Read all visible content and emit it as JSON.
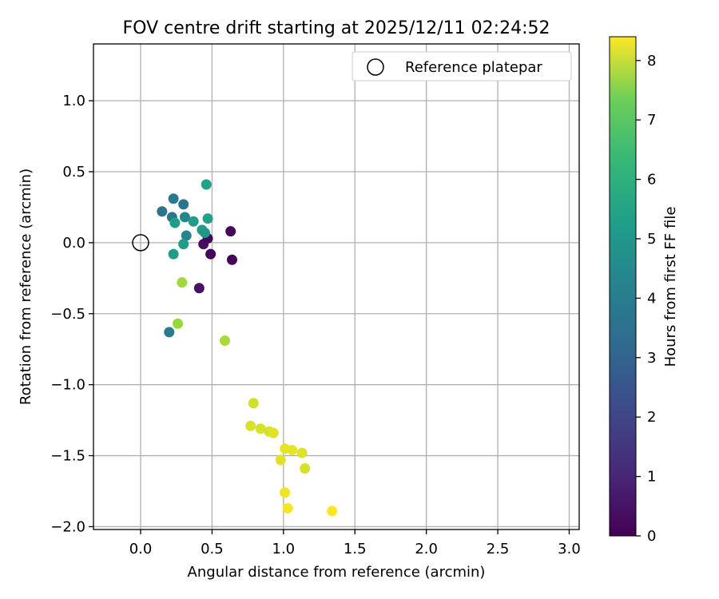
{
  "chart_data": {
    "type": "scatter",
    "title": "FOV centre drift starting at 2025/12/11 02:24:52",
    "xlabel": "Angular distance from reference (arcmin)",
    "ylabel": "Rotation from reference (arcmin)",
    "xlim": [
      -0.33,
      3.07
    ],
    "ylim": [
      -2.02,
      1.4
    ],
    "xticks": [
      0.0,
      0.5,
      1.0,
      1.5,
      2.0,
      2.5,
      3.0
    ],
    "xtick_labels": [
      "0.0",
      "0.5",
      "1.0",
      "1.5",
      "2.0",
      "2.5",
      "3.0"
    ],
    "yticks": [
      1.0,
      0.5,
      0.0,
      -0.5,
      -1.0,
      -1.5,
      -2.0
    ],
    "ytick_labels": [
      "1.0",
      "0.5",
      "0.0",
      "−0.5",
      "−1.0",
      "−1.5",
      "−2.0"
    ],
    "grid": true,
    "legend": {
      "placement": "top-right",
      "entries": [
        {
          "label": "Reference platepar",
          "marker": "open-circle",
          "color": "#000000"
        }
      ]
    },
    "reference_point": {
      "x": 0.0,
      "y": 0.0
    },
    "colorbar": {
      "label": "Hours from first FF file",
      "range": [
        0,
        8.4
      ],
      "ticks": [
        0,
        1,
        2,
        3,
        4,
        5,
        6,
        7,
        8
      ],
      "tick_labels": [
        "0",
        "1",
        "2",
        "3",
        "4",
        "5",
        "6",
        "7",
        "8"
      ],
      "colormap": "viridis"
    },
    "points": [
      {
        "x": 0.44,
        "y": -0.01,
        "hours": 0.3
      },
      {
        "x": 0.47,
        "y": 0.03,
        "hours": 0.2
      },
      {
        "x": 0.49,
        "y": -0.08,
        "hours": 0.1
      },
      {
        "x": 0.63,
        "y": 0.08,
        "hours": 0.2
      },
      {
        "x": 0.64,
        "y": -0.12,
        "hours": 0.1
      },
      {
        "x": 0.41,
        "y": -0.32,
        "hours": 0.4
      },
      {
        "x": 0.15,
        "y": 0.22,
        "hours": 3.2
      },
      {
        "x": 0.23,
        "y": 0.31,
        "hours": 3.4
      },
      {
        "x": 0.22,
        "y": 0.18,
        "hours": 3.3
      },
      {
        "x": 0.3,
        "y": 0.27,
        "hours": 3.3
      },
      {
        "x": 0.31,
        "y": 0.18,
        "hours": 3.9
      },
      {
        "x": 0.32,
        "y": 0.05,
        "hours": 3.8
      },
      {
        "x": 0.2,
        "y": -0.63,
        "hours": 3.5
      },
      {
        "x": 0.24,
        "y": 0.14,
        "hours": 4.7
      },
      {
        "x": 0.37,
        "y": 0.15,
        "hours": 4.6
      },
      {
        "x": 0.43,
        "y": 0.09,
        "hours": 4.6
      },
      {
        "x": 0.45,
        "y": 0.07,
        "hours": 4.4
      },
      {
        "x": 0.46,
        "y": 0.41,
        "hours": 4.8
      },
      {
        "x": 0.47,
        "y": 0.17,
        "hours": 4.8
      },
      {
        "x": 0.3,
        "y": -0.01,
        "hours": 4.6
      },
      {
        "x": 0.23,
        "y": -0.08,
        "hours": 4.6
      },
      {
        "x": 0.29,
        "y": -0.28,
        "hours": 7.2
      },
      {
        "x": 0.26,
        "y": -0.57,
        "hours": 7.1
      },
      {
        "x": 0.59,
        "y": -0.69,
        "hours": 7.3
      },
      {
        "x": 0.79,
        "y": -1.13,
        "hours": 7.8
      },
      {
        "x": 0.77,
        "y": -1.29,
        "hours": 7.9
      },
      {
        "x": 0.84,
        "y": -1.31,
        "hours": 7.9
      },
      {
        "x": 0.9,
        "y": -1.33,
        "hours": 7.9
      },
      {
        "x": 0.93,
        "y": -1.34,
        "hours": 8.0
      },
      {
        "x": 1.01,
        "y": -1.45,
        "hours": 8.1
      },
      {
        "x": 1.06,
        "y": -1.46,
        "hours": 8.1
      },
      {
        "x": 1.13,
        "y": -1.48,
        "hours": 8.0
      },
      {
        "x": 0.98,
        "y": -1.53,
        "hours": 8.0
      },
      {
        "x": 1.15,
        "y": -1.59,
        "hours": 7.9
      },
      {
        "x": 1.01,
        "y": -1.76,
        "hours": 8.2
      },
      {
        "x": 1.03,
        "y": -1.87,
        "hours": 8.3
      },
      {
        "x": 1.34,
        "y": -1.89,
        "hours": 8.4
      }
    ]
  }
}
